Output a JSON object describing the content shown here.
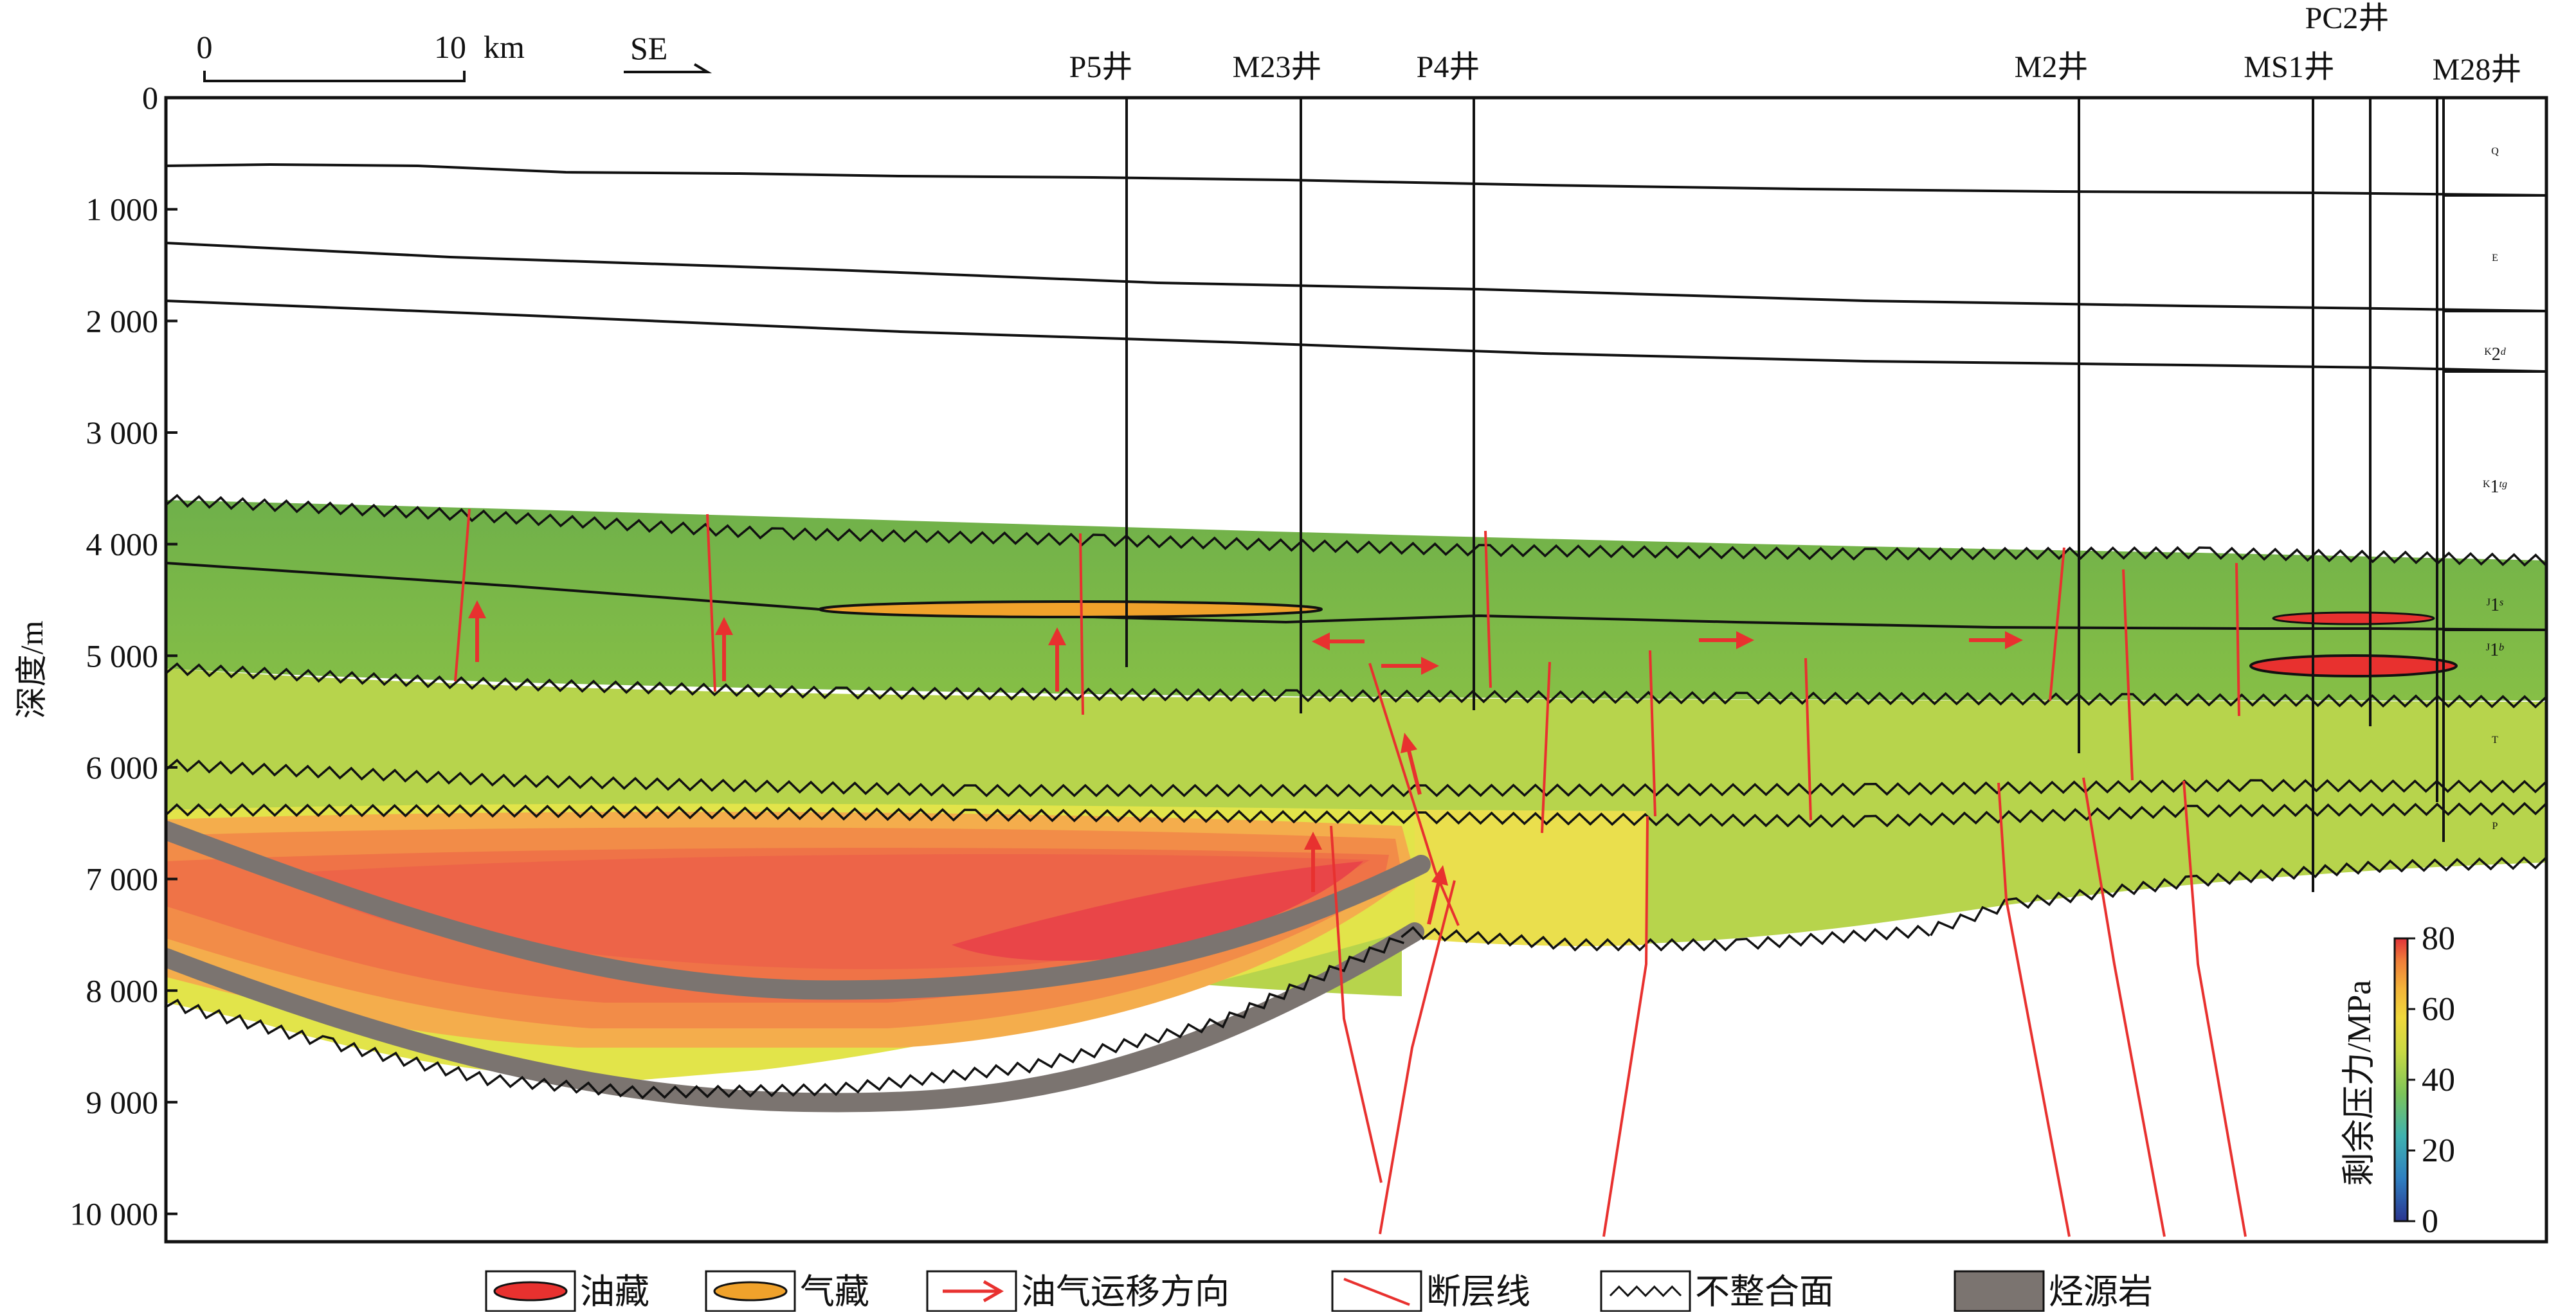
{
  "scale_bar": {
    "start": "0",
    "end": "10",
    "unit": "km"
  },
  "direction": {
    "label": "SE"
  },
  "y_axis": {
    "label": "深度/m",
    "ticks": [
      "0",
      "1 000",
      "2 000",
      "3 000",
      "4 000",
      "5 000",
      "6 000",
      "7 000",
      "8 000",
      "9 000",
      "10 000"
    ]
  },
  "wells": [
    {
      "name": "P5井"
    },
    {
      "name": "M23井"
    },
    {
      "name": "P4井"
    },
    {
      "name": "M2井"
    },
    {
      "name": "MS1井"
    },
    {
      "name": "PC2井"
    },
    {
      "name": "M28井"
    }
  ],
  "strata": [
    {
      "name": "Q",
      "parts": [
        [
          "Q",
          ""
        ]
      ]
    },
    {
      "name": "E",
      "parts": [
        [
          "E",
          ""
        ]
      ]
    },
    {
      "name": "K2d",
      "parts": [
        [
          "K",
          ""
        ],
        [
          "2",
          "sub"
        ],
        [
          "d",
          "it"
        ]
      ]
    },
    {
      "name": "K1tg",
      "parts": [
        [
          "K",
          ""
        ],
        [
          "1",
          "sub"
        ],
        [
          "tg",
          "it"
        ]
      ]
    },
    {
      "name": "J1s",
      "parts": [
        [
          "J",
          ""
        ],
        [
          "1",
          "sub"
        ],
        [
          "s",
          "it"
        ]
      ]
    },
    {
      "name": "J1b",
      "parts": [
        [
          "J",
          ""
        ],
        [
          "1",
          "sub"
        ],
        [
          "b",
          "it"
        ]
      ]
    },
    {
      "name": "T",
      "parts": [
        [
          "T",
          ""
        ]
      ]
    },
    {
      "name": "P",
      "parts": [
        [
          "P",
          ""
        ]
      ]
    }
  ],
  "colorbar": {
    "label": "剩余压力/MPa",
    "ticks": [
      "80",
      "60",
      "40",
      "20",
      "0"
    ],
    "min": 0,
    "max": 80,
    "colors": [
      "#2a3590",
      "#2f7fc0",
      "#3fb2b0",
      "#7cc45a",
      "#b8d448",
      "#e6e040",
      "#f3b53a",
      "#ef7f3a",
      "#e2333a"
    ]
  },
  "legend": [
    {
      "key": "oil",
      "label": "油藏",
      "color": "#e8312f"
    },
    {
      "key": "gas",
      "label": "气藏",
      "color": "#f0a22b"
    },
    {
      "key": "migration",
      "label": "油气运移方向",
      "color": "#e8312f"
    },
    {
      "key": "fault",
      "label": "断层线",
      "color": "#e8312f"
    },
    {
      "key": "unconformity",
      "label": "不整合面",
      "color": "#111111"
    },
    {
      "key": "source",
      "label": "烃源岩",
      "color": "#7b7470"
    }
  ],
  "colors": {
    "green_zone": "#82bb4a",
    "lightgreen_zone": "#b9d44a",
    "yellow_zone": "#e3e54a",
    "hot_orange": "#f29a48",
    "hot_red": "#ee5a4a",
    "source_rock": "#7b7470",
    "fault": "#e8312f"
  }
}
